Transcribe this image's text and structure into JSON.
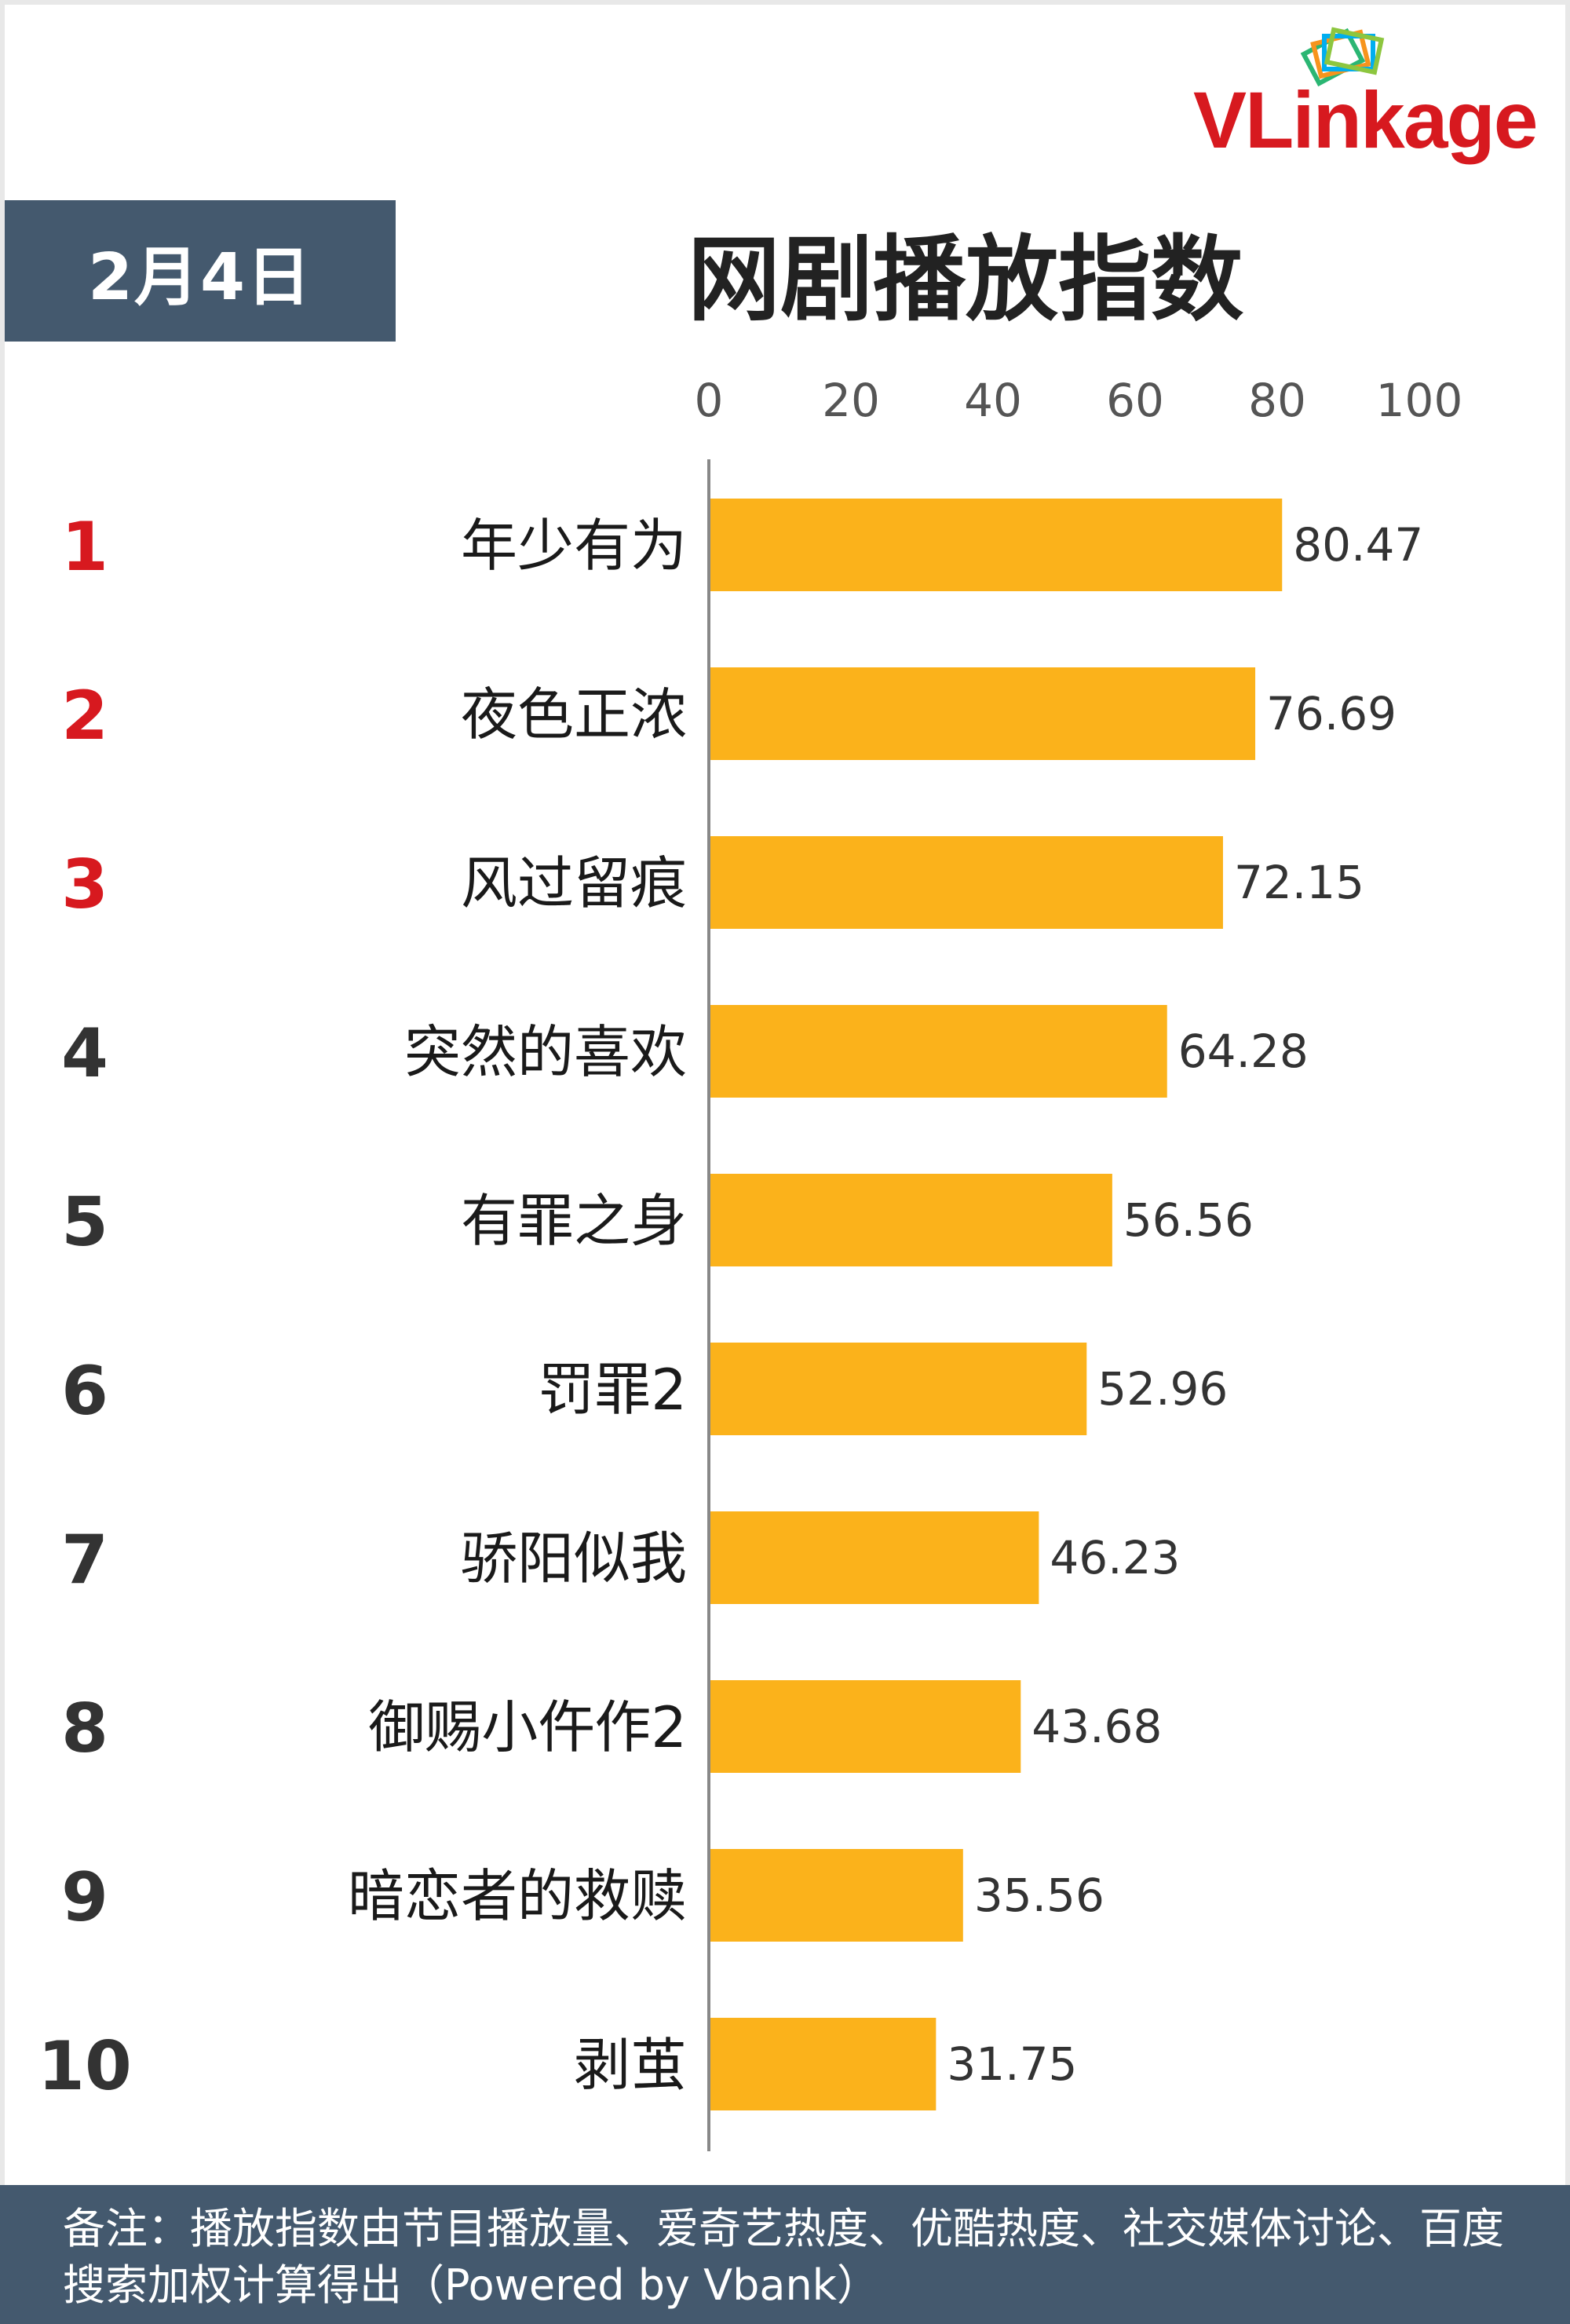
{
  "logo": {
    "text": "VLinkage"
  },
  "header": {
    "date": "2月4日",
    "title": "网剧播放指数"
  },
  "footer": {
    "note": "备注：播放指数由节目播放量、爱奇艺热度、优酷热度、社交媒体讨论、百度搜索加权计算得出（Powered by Vbank）"
  },
  "colors": {
    "bar": "#fbb21b",
    "rank_top": "#d7191f",
    "rank_other": "#333333",
    "header_bg": "#44596e"
  },
  "chart_data": {
    "type": "bar",
    "orientation": "horizontal",
    "title": "网剧播放指数",
    "xlim": [
      0,
      100
    ],
    "xticks": [
      "0",
      "20",
      "40",
      "60",
      "80",
      "100"
    ],
    "xtick_values": [
      0,
      20,
      40,
      60,
      80,
      100
    ],
    "ranks": [
      "1",
      "2",
      "3",
      "4",
      "5",
      "6",
      "7",
      "8",
      "9",
      "10"
    ],
    "categories": [
      "年少有为",
      "夜色正浓",
      "风过留痕",
      "突然的喜欢",
      "有罪之身",
      "罚罪2",
      "骄阳似我",
      "御赐小仵作2",
      "暗恋者的救赎",
      "剥茧"
    ],
    "values": [
      80.47,
      76.69,
      72.15,
      64.28,
      56.56,
      52.96,
      46.23,
      43.68,
      35.56,
      31.75
    ],
    "value_labels": [
      "80.47",
      "76.69",
      "72.15",
      "64.28",
      "56.56",
      "52.96",
      "46.23",
      "43.68",
      "35.56",
      "31.75"
    ],
    "grid": false,
    "legend": "none"
  }
}
